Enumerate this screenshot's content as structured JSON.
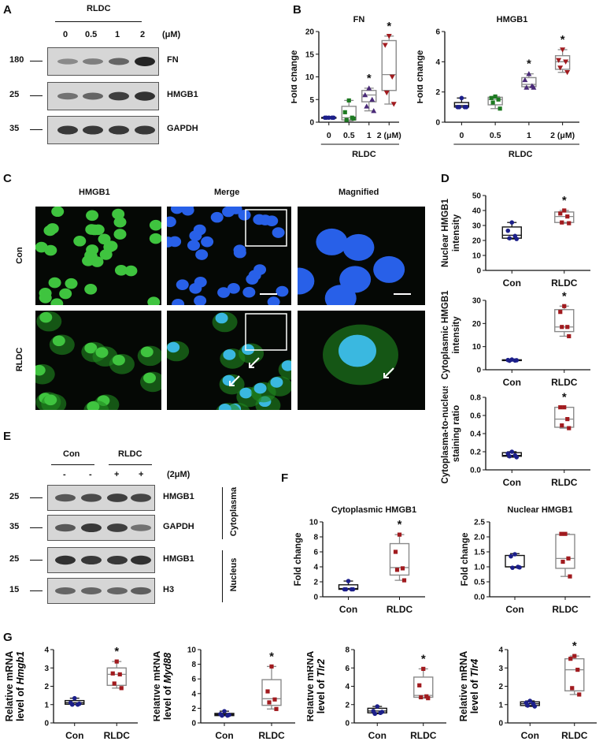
{
  "panels": {
    "A": "A",
    "B": "B",
    "C": "C",
    "D": "D",
    "E": "E",
    "F": "F",
    "G": "G"
  },
  "panelA": {
    "group": "RLDC",
    "doses": [
      "0",
      "0.5",
      "1",
      "2"
    ],
    "unit": "(μM)",
    "rows": [
      {
        "label": "FN",
        "mw": "180"
      },
      {
        "label": "HMGB1",
        "mw": "25"
      },
      {
        "label": "GAPDH",
        "mw": "35"
      }
    ]
  },
  "panelC": {
    "columns": [
      "HMGB1",
      "Merge",
      "Magnified"
    ],
    "rows": [
      "Con",
      "RLDC"
    ]
  },
  "panelE": {
    "groups": [
      "Con",
      "RLDC"
    ],
    "signs": [
      "-",
      "-",
      "+",
      "+"
    ],
    "dose": "(2μM)",
    "rows": [
      {
        "label": "HMGB1",
        "mw": "25"
      },
      {
        "label": "GAPDH",
        "mw": "35"
      },
      {
        "label": "HMGB1",
        "mw": "25"
      },
      {
        "label": "H3",
        "mw": "15"
      }
    ],
    "fractions": [
      "Cytoplasma",
      "Nucleus"
    ]
  },
  "colors": {
    "con": "#1c1f8a",
    "dose05": "#1e7a22",
    "dose1": "#4a2a78",
    "rldc": "#a11b1f",
    "box_dark": "#111111",
    "box_light": "#8a8a8a"
  },
  "chart_data": [
    {
      "id": "B-FN",
      "type": "box",
      "title": "FN",
      "ylabel": "Fold  change",
      "ylim": [
        0,
        20
      ],
      "yticks": [
        "0",
        "5",
        "10",
        "15",
        "20"
      ],
      "group_label": "RLDC",
      "categories": [
        "0",
        "0.5",
        "1",
        "2 (μM)"
      ],
      "groups": [
        {
          "points": [
            1,
            1,
            1,
            1,
            1
          ],
          "box": [
            0.9,
            1,
            1,
            1.05,
            1.1
          ],
          "marker": "circle",
          "color": "#1c1f8a",
          "sig": false
        },
        {
          "points": [
            4.8,
            2.2,
            1,
            0.5,
            0.8
          ],
          "box": [
            0.3,
            0.5,
            1,
            3.5,
            4.8
          ],
          "marker": "square",
          "color": "#1e7a22",
          "sig": false
        },
        {
          "points": [
            7.5,
            6,
            5,
            3.5,
            2.5
          ],
          "box": [
            2.5,
            4.5,
            6,
            7,
            7.5
          ],
          "marker": "triangle",
          "color": "#4a2a78",
          "sig": true
        },
        {
          "points": [
            19,
            17,
            10,
            6.5,
            4
          ],
          "box": [
            4,
            7,
            10.5,
            18,
            19
          ],
          "marker": "triangle-down",
          "color": "#a11b1f",
          "sig": true
        }
      ]
    },
    {
      "id": "B-HMGB1",
      "type": "box",
      "title": "HMGB1",
      "ylabel": "Fold  change",
      "ylim": [
        0,
        6
      ],
      "yticks": [
        "0",
        "2",
        "4",
        "6"
      ],
      "group_label": "RLDC",
      "categories": [
        "0",
        "0.5",
        "1",
        "2 (μM)"
      ],
      "groups": [
        {
          "points": [
            1.6,
            1.0,
            1.0,
            1.0,
            1.0
          ],
          "box": [
            1,
            1,
            1.1,
            1.3,
            1.6
          ],
          "marker": "circle",
          "color": "#1c1f8a",
          "sig": false
        },
        {
          "points": [
            1.7,
            1.6,
            1.5,
            1.3,
            0.9
          ],
          "box": [
            0.9,
            1.15,
            1.5,
            1.65,
            1.7
          ],
          "marker": "square",
          "color": "#1e7a22",
          "sig": false
        },
        {
          "points": [
            3.2,
            2.8,
            2.4,
            2.3,
            2.3
          ],
          "box": [
            2.3,
            2.35,
            2.5,
            2.95,
            3.2
          ],
          "marker": "triangle",
          "color": "#4a2a78",
          "sig": true
        },
        {
          "points": [
            4.8,
            4.1,
            4.0,
            3.6,
            3.3
          ],
          "box": [
            3.3,
            3.5,
            4.0,
            4.4,
            4.8
          ],
          "marker": "triangle-down",
          "color": "#a11b1f",
          "sig": true
        }
      ]
    },
    {
      "id": "D-nuclear",
      "type": "box",
      "ylabel": [
        "Nuclear HMGB1",
        "intensity"
      ],
      "ylim": [
        0,
        50
      ],
      "yticks": [
        "0",
        "10",
        "20",
        "30",
        "40",
        "50"
      ],
      "categories": [
        "Con",
        "RLDC"
      ],
      "groups": [
        {
          "points": [
            32,
            26.5,
            23,
            21.5,
            21
          ],
          "box": [
            21,
            21.5,
            23.5,
            29,
            32
          ],
          "marker": "circle",
          "color": "#1c1f8a",
          "sig": false
        },
        {
          "points": [
            40,
            38,
            36,
            32,
            31.5
          ],
          "box": [
            31.5,
            32,
            36,
            39,
            40
          ],
          "marker": "square",
          "color": "#a11b1f",
          "sig": true
        }
      ]
    },
    {
      "id": "D-cytoplasmic",
      "type": "box",
      "ylabel": [
        "Cytoplasmic HMGB1",
        "intensity"
      ],
      "ylim": [
        0,
        30
      ],
      "yticks": [
        "0",
        "10",
        "20",
        "30"
      ],
      "categories": [
        "Con",
        "RLDC"
      ],
      "groups": [
        {
          "points": [
            4.4,
            4.2,
            4,
            3.9,
            4.1
          ],
          "box": [
            3.9,
            4,
            4.1,
            4.3,
            4.4
          ],
          "marker": "circle",
          "color": "#1c1f8a",
          "sig": false
        },
        {
          "points": [
            27.5,
            25,
            18.5,
            18.5,
            14.5
          ],
          "box": [
            14.5,
            16.5,
            18.5,
            26,
            27.5
          ],
          "marker": "square",
          "color": "#a11b1f",
          "sig": true
        }
      ]
    },
    {
      "id": "D-ratio",
      "type": "box",
      "ylabel": [
        "Cytoplasma-to-nucleus",
        "staining ratio"
      ],
      "ylim": [
        0,
        0.8
      ],
      "yticks": [
        "0.0",
        "0.2",
        "0.4",
        "0.6",
        "0.8"
      ],
      "categories": [
        "Con",
        "RLDC"
      ],
      "groups": [
        {
          "points": [
            0.2,
            0.18,
            0.16,
            0.15,
            0.14
          ],
          "box": [
            0.14,
            0.15,
            0.16,
            0.19,
            0.2
          ],
          "marker": "circle",
          "color": "#1c1f8a",
          "sig": false
        },
        {
          "points": [
            0.69,
            0.69,
            0.56,
            0.49,
            0.46
          ],
          "box": [
            0.46,
            0.47,
            0.56,
            0.69,
            0.69
          ],
          "marker": "square",
          "color": "#a11b1f",
          "sig": true
        }
      ]
    },
    {
      "id": "F-cytoplasmic",
      "type": "box",
      "title": "Cytoplasmic HMGB1",
      "ylabel": "Fold  change",
      "ylim": [
        0,
        10
      ],
      "yticks": [
        "0",
        "2",
        "4",
        "6",
        "8",
        "10"
      ],
      "categories": [
        "Con",
        "RLDC"
      ],
      "groups": [
        {
          "points": [
            2.1,
            1,
            1,
            1,
            1
          ],
          "box": [
            1,
            1,
            1.1,
            1.6,
            2.1
          ],
          "marker": "circle",
          "color": "#1c1f8a",
          "sig": false
        },
        {
          "points": [
            8.3,
            6,
            3.8,
            3.6,
            2.2
          ],
          "box": [
            2.2,
            2.9,
            3.9,
            7.1,
            8.3
          ],
          "marker": "square",
          "color": "#a11b1f",
          "sig": true
        }
      ]
    },
    {
      "id": "F-nuclear",
      "type": "box",
      "title": "Nuclear HMGB1",
      "ylabel": "Fold  change",
      "ylim": [
        0,
        2.5
      ],
      "yticks": [
        "0.0",
        "0.5",
        "1.0",
        "1.5",
        "2.0",
        "2.5"
      ],
      "categories": [
        "Con",
        "RLDC"
      ],
      "groups": [
        {
          "points": [
            1.42,
            1.35,
            1.0,
            0.97,
            0.98
          ],
          "box": [
            0.97,
            1,
            1,
            1.38,
            1.44
          ],
          "marker": "circle",
          "color": "#1c1f8a",
          "sig": false
        },
        {
          "points": [
            2.1,
            2.1,
            1.28,
            1.17,
            0.68
          ],
          "box": [
            0.68,
            0.95,
            1.28,
            2.08,
            2.1
          ],
          "marker": "square",
          "color": "#a11b1f",
          "sig": false
        }
      ]
    },
    {
      "id": "G-Hmgb1",
      "type": "box",
      "ylabel": [
        "Relative mRNA",
        "level of "
      ],
      "gene": "Hmgb1",
      "ylim": [
        0,
        4
      ],
      "yticks": [
        "0",
        "1",
        "2",
        "3",
        "4"
      ],
      "categories": [
        "Con",
        "RLDC"
      ],
      "groups": [
        {
          "points": [
            1.35,
            1.1,
            1.0,
            1.0,
            1.05
          ],
          "box": [
            1,
            1.02,
            1.1,
            1.22,
            1.35
          ],
          "marker": "circle",
          "color": "#1c1f8a",
          "sig": false
        },
        {
          "points": [
            3.35,
            2.7,
            2.65,
            2.15,
            1.9
          ],
          "box": [
            1.9,
            2.05,
            2.65,
            3.0,
            3.35
          ],
          "marker": "square",
          "color": "#a11b1f",
          "sig": true
        }
      ]
    },
    {
      "id": "G-Myd88",
      "type": "box",
      "ylabel": [
        "Relative mRNA",
        "level of "
      ],
      "gene": "Myd88",
      "ylim": [
        0,
        10
      ],
      "yticks": [
        "0",
        "2",
        "4",
        "6",
        "8",
        "10"
      ],
      "categories": [
        "Con",
        "RLDC"
      ],
      "groups": [
        {
          "points": [
            1.6,
            1.2,
            1,
            1,
            1.1
          ],
          "box": [
            1,
            1,
            1.15,
            1.3,
            1.6
          ],
          "marker": "circle",
          "color": "#1c1f8a",
          "sig": false
        },
        {
          "points": [
            7.7,
            4.3,
            3.2,
            2.8,
            1.9
          ],
          "box": [
            1.9,
            2.4,
            3.3,
            5.9,
            7.7
          ],
          "marker": "square",
          "color": "#a11b1f",
          "sig": true
        }
      ]
    },
    {
      "id": "G-Tlr2",
      "type": "box",
      "ylabel": [
        "Relative mRNA",
        "level of "
      ],
      "gene": "Tlr2",
      "ylim": [
        0,
        8
      ],
      "yticks": [
        "0",
        "2",
        "4",
        "6",
        "8"
      ],
      "categories": [
        "Con",
        "RLDC"
      ],
      "groups": [
        {
          "points": [
            1.8,
            1.3,
            1.1,
            1.0,
            1.2
          ],
          "box": [
            1,
            1.1,
            1.3,
            1.6,
            1.8
          ],
          "marker": "circle",
          "color": "#1c1f8a",
          "sig": false
        },
        {
          "points": [
            5.9,
            4.1,
            2.9,
            2.8,
            2.7
          ],
          "box": [
            2.7,
            2.8,
            3,
            5,
            5.9
          ],
          "marker": "square",
          "color": "#a11b1f",
          "sig": true
        }
      ]
    },
    {
      "id": "G-Tlr4",
      "type": "box",
      "ylabel": [
        "Relative mRNA",
        "level of "
      ],
      "gene": "Tlr4",
      "ylim": [
        0,
        4
      ],
      "yticks": [
        "0",
        "1",
        "2",
        "3",
        "4"
      ],
      "categories": [
        "Con",
        "RLDC"
      ],
      "groups": [
        {
          "points": [
            1.2,
            1.1,
            1.05,
            0.95,
            0.9
          ],
          "box": [
            0.9,
            0.95,
            1.05,
            1.15,
            1.2
          ],
          "marker": "circle",
          "color": "#1c1f8a",
          "sig": false
        },
        {
          "points": [
            3.65,
            3.5,
            2.9,
            1.9,
            1.55
          ],
          "box": [
            1.55,
            1.75,
            2.9,
            3.5,
            3.65
          ],
          "marker": "square",
          "color": "#a11b1f",
          "sig": true
        }
      ]
    }
  ]
}
